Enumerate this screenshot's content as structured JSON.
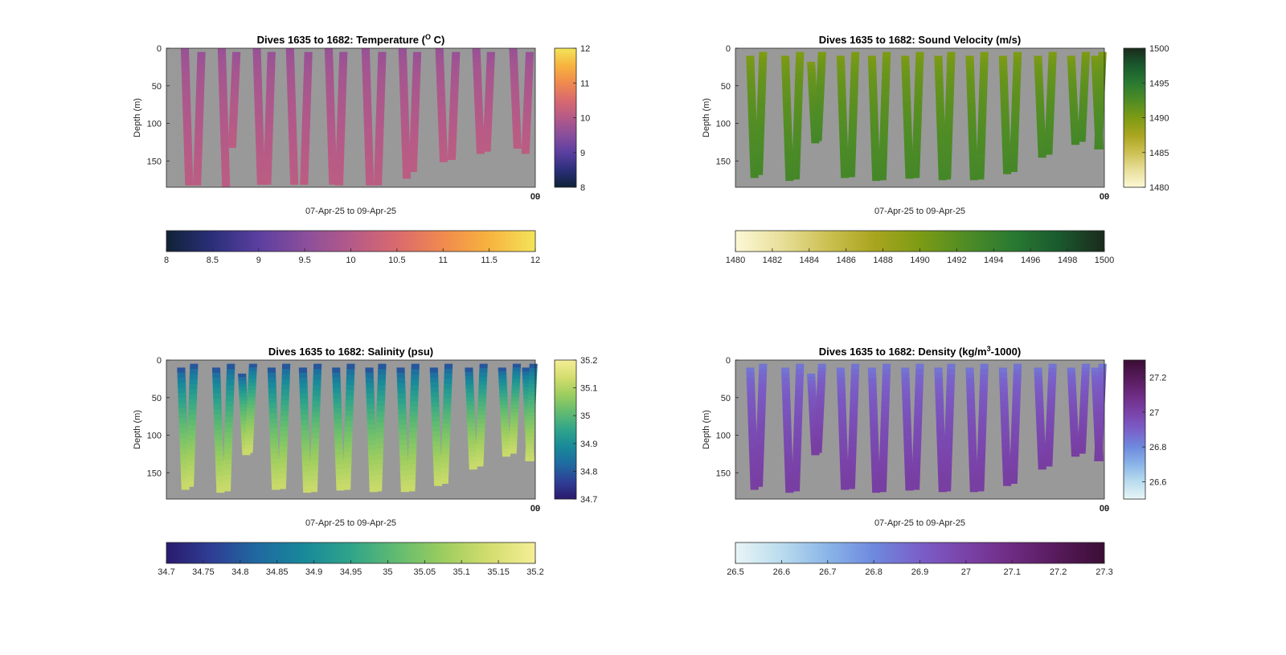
{
  "chart_data": [
    {
      "type": "heatmap",
      "title": "Dives 1635 to 1682: Temperature (",
      "title_sup": "O",
      "title_after": " C)",
      "xlabel": "07-Apr-25 to 09-Apr-25",
      "ylabel": "Depth (m)",
      "x_corner_labels": [
        "00",
        "09"
      ],
      "ylim": [
        0,
        185
      ],
      "yticks": [
        0,
        50,
        100,
        150
      ],
      "yreversed": true,
      "background_color": "#999999",
      "colormap": [
        "#0f2236",
        "#2b2f7a",
        "#5b3fa0",
        "#8a4e9c",
        "#b45a88",
        "#d96a6e",
        "#f08a4e",
        "#f7b33e",
        "#f3e45a"
      ],
      "clim": [
        8,
        12
      ],
      "right_colorbar_ticks": [
        "8",
        "9",
        "10",
        "11",
        "12"
      ],
      "bottom_colorbar_ticks": [
        "8",
        "8.5",
        "9",
        "9.5",
        "10",
        "10.5",
        "11",
        "11.5",
        "12"
      ],
      "profile_value_top": 9.6,
      "profile_value_bottom": 10.1,
      "profiles": [
        {
          "x": 0.05,
          "top": 0,
          "bottom": 182
        },
        {
          "x": 0.095,
          "top": 5,
          "bottom": 182
        },
        {
          "x": 0.15,
          "top": 0,
          "bottom": 184
        },
        {
          "x": 0.19,
          "top": 5,
          "bottom": 132
        },
        {
          "x": 0.245,
          "top": 0,
          "bottom": 181
        },
        {
          "x": 0.285,
          "top": 5,
          "bottom": 181
        },
        {
          "x": 0.335,
          "top": 0,
          "bottom": 181
        },
        {
          "x": 0.385,
          "top": 5,
          "bottom": 181
        },
        {
          "x": 0.44,
          "top": 0,
          "bottom": 181
        },
        {
          "x": 0.48,
          "top": 5,
          "bottom": 182
        },
        {
          "x": 0.54,
          "top": 0,
          "bottom": 182
        },
        {
          "x": 0.585,
          "top": 5,
          "bottom": 182
        },
        {
          "x": 0.64,
          "top": 0,
          "bottom": 173
        },
        {
          "x": 0.68,
          "top": 5,
          "bottom": 164
        },
        {
          "x": 0.74,
          "top": 0,
          "bottom": 151
        },
        {
          "x": 0.785,
          "top": 5,
          "bottom": 148
        },
        {
          "x": 0.84,
          "top": 0,
          "bottom": 140
        },
        {
          "x": 0.88,
          "top": 5,
          "bottom": 137
        },
        {
          "x": 0.94,
          "top": 0,
          "bottom": 133
        },
        {
          "x": 0.985,
          "top": 5,
          "bottom": 140
        }
      ]
    },
    {
      "type": "heatmap",
      "title": "Dives 1635 to 1682: Sound Velocity (m/s)",
      "xlabel": "07-Apr-25 to 09-Apr-25",
      "ylabel": "Depth (m)",
      "x_corner_labels": [
        "00",
        "09"
      ],
      "ylim": [
        0,
        185
      ],
      "yticks": [
        0,
        50,
        100,
        150
      ],
      "yreversed": true,
      "background_color": "#999999",
      "colormap": [
        "#fcf8d6",
        "#e8df9a",
        "#ccc052",
        "#a9a51f",
        "#7d9b14",
        "#4f8c25",
        "#2a7a32",
        "#1a5a2e",
        "#1a2a1c"
      ],
      "clim": [
        1480,
        1500
      ],
      "right_colorbar_ticks": [
        "1480",
        "1485",
        "1490",
        "1495",
        "1500"
      ],
      "bottom_colorbar_ticks": [
        "1480",
        "1482",
        "1484",
        "1486",
        "1488",
        "1490",
        "1492",
        "1494",
        "1496",
        "1498",
        "1500"
      ],
      "profile_value_top": 1489.5,
      "profile_value_bottom": 1493.2,
      "profiles": [
        {
          "x": 0.04,
          "top": 10,
          "bottom": 172
        },
        {
          "x": 0.075,
          "top": 5,
          "bottom": 168
        },
        {
          "x": 0.135,
          "top": 10,
          "bottom": 176
        },
        {
          "x": 0.175,
          "top": 5,
          "bottom": 174
        },
        {
          "x": 0.205,
          "top": 18,
          "bottom": 126
        },
        {
          "x": 0.235,
          "top": 5,
          "bottom": 123
        },
        {
          "x": 0.285,
          "top": 10,
          "bottom": 172
        },
        {
          "x": 0.325,
          "top": 5,
          "bottom": 171
        },
        {
          "x": 0.37,
          "top": 10,
          "bottom": 176
        },
        {
          "x": 0.41,
          "top": 5,
          "bottom": 175
        },
        {
          "x": 0.46,
          "top": 10,
          "bottom": 173
        },
        {
          "x": 0.5,
          "top": 5,
          "bottom": 172
        },
        {
          "x": 0.55,
          "top": 10,
          "bottom": 175
        },
        {
          "x": 0.585,
          "top": 5,
          "bottom": 174
        },
        {
          "x": 0.635,
          "top": 10,
          "bottom": 175
        },
        {
          "x": 0.675,
          "top": 5,
          "bottom": 174
        },
        {
          "x": 0.725,
          "top": 10,
          "bottom": 167
        },
        {
          "x": 0.765,
          "top": 5,
          "bottom": 164
        },
        {
          "x": 0.82,
          "top": 10,
          "bottom": 145
        },
        {
          "x": 0.86,
          "top": 5,
          "bottom": 141
        },
        {
          "x": 0.91,
          "top": 10,
          "bottom": 128
        },
        {
          "x": 0.95,
          "top": 5,
          "bottom": 124
        },
        {
          "x": 0.975,
          "top": 10,
          "bottom": 134
        },
        {
          "x": 0.995,
          "top": 5,
          "bottom": 134
        }
      ]
    },
    {
      "type": "heatmap",
      "title": "Dives 1635 to 1682: Salinity (psu)",
      "xlabel": "07-Apr-25 to 09-Apr-25",
      "ylabel": "Depth (m)",
      "x_corner_labels": [
        "00",
        "09"
      ],
      "ylim": [
        0,
        185
      ],
      "yticks": [
        0,
        50,
        100,
        150
      ],
      "yreversed": true,
      "background_color": "#999999",
      "colormap": [
        "#2a1a6e",
        "#2e3f95",
        "#1f6aa0",
        "#18899a",
        "#30a48a",
        "#62bb70",
        "#9ccd5f",
        "#d3dd6e",
        "#f5ee97"
      ],
      "clim": [
        34.7,
        35.2
      ],
      "right_colorbar_ticks": [
        "34.7",
        "34.8",
        "34.9",
        "35",
        "35.1",
        "35.2"
      ],
      "bottom_colorbar_ticks": [
        "34.7",
        "34.75",
        "34.8",
        "34.85",
        "34.9",
        "34.95",
        "35",
        "35.05",
        "35.1",
        "35.15",
        "35.2"
      ],
      "profile_value_top": 34.74,
      "profile_value_bottom": 35.13,
      "profiles": [
        {
          "x": 0.04,
          "top": 10,
          "bottom": 172
        },
        {
          "x": 0.075,
          "top": 5,
          "bottom": 168
        },
        {
          "x": 0.135,
          "top": 10,
          "bottom": 176
        },
        {
          "x": 0.175,
          "top": 5,
          "bottom": 174
        },
        {
          "x": 0.205,
          "top": 18,
          "bottom": 126
        },
        {
          "x": 0.235,
          "top": 5,
          "bottom": 123
        },
        {
          "x": 0.285,
          "top": 10,
          "bottom": 172
        },
        {
          "x": 0.325,
          "top": 5,
          "bottom": 171
        },
        {
          "x": 0.37,
          "top": 10,
          "bottom": 176
        },
        {
          "x": 0.41,
          "top": 5,
          "bottom": 175
        },
        {
          "x": 0.46,
          "top": 10,
          "bottom": 173
        },
        {
          "x": 0.5,
          "top": 5,
          "bottom": 172
        },
        {
          "x": 0.55,
          "top": 10,
          "bottom": 175
        },
        {
          "x": 0.585,
          "top": 5,
          "bottom": 174
        },
        {
          "x": 0.635,
          "top": 10,
          "bottom": 175
        },
        {
          "x": 0.675,
          "top": 5,
          "bottom": 174
        },
        {
          "x": 0.725,
          "top": 10,
          "bottom": 167
        },
        {
          "x": 0.765,
          "top": 5,
          "bottom": 164
        },
        {
          "x": 0.82,
          "top": 10,
          "bottom": 145
        },
        {
          "x": 0.86,
          "top": 5,
          "bottom": 141
        },
        {
          "x": 0.91,
          "top": 10,
          "bottom": 128
        },
        {
          "x": 0.95,
          "top": 5,
          "bottom": 124
        },
        {
          "x": 0.975,
          "top": 10,
          "bottom": 134
        },
        {
          "x": 0.995,
          "top": 5,
          "bottom": 134
        }
      ]
    },
    {
      "type": "heatmap",
      "title": "Dives 1635 to 1682: Density (kg/m",
      "title_sup": "3",
      "title_after": "-1000)",
      "xlabel": "07-Apr-25 to 09-Apr-25",
      "ylabel": "Depth (m)",
      "x_corner_labels": [
        "00",
        "09"
      ],
      "ylim": [
        0,
        185
      ],
      "yticks": [
        0,
        50,
        100,
        150
      ],
      "yreversed": true,
      "background_color": "#999999",
      "colormap": [
        "#e9f5f6",
        "#b9dcee",
        "#8ab5e8",
        "#6e89de",
        "#7a5fc8",
        "#7a42a8",
        "#6e2b82",
        "#561a5a",
        "#3a0e34"
      ],
      "clim": [
        26.5,
        27.3
      ],
      "right_colorbar_ticks": [
        "26.6",
        "26.8",
        "27",
        "27.2"
      ],
      "bottom_colorbar_ticks": [
        "26.5",
        "26.6",
        "26.7",
        "26.8",
        "26.9",
        "27",
        "27.1",
        "27.2",
        "27.3"
      ],
      "profile_value_top": 26.82,
      "profile_value_bottom": 27.02,
      "profiles": [
        {
          "x": 0.04,
          "top": 10,
          "bottom": 172
        },
        {
          "x": 0.075,
          "top": 5,
          "bottom": 168
        },
        {
          "x": 0.135,
          "top": 10,
          "bottom": 176
        },
        {
          "x": 0.175,
          "top": 5,
          "bottom": 174
        },
        {
          "x": 0.205,
          "top": 18,
          "bottom": 126
        },
        {
          "x": 0.235,
          "top": 5,
          "bottom": 123
        },
        {
          "x": 0.285,
          "top": 10,
          "bottom": 172
        },
        {
          "x": 0.325,
          "top": 5,
          "bottom": 171
        },
        {
          "x": 0.37,
          "top": 10,
          "bottom": 176
        },
        {
          "x": 0.41,
          "top": 5,
          "bottom": 175
        },
        {
          "x": 0.46,
          "top": 10,
          "bottom": 173
        },
        {
          "x": 0.5,
          "top": 5,
          "bottom": 172
        },
        {
          "x": 0.55,
          "top": 10,
          "bottom": 175
        },
        {
          "x": 0.585,
          "top": 5,
          "bottom": 174
        },
        {
          "x": 0.635,
          "top": 10,
          "bottom": 175
        },
        {
          "x": 0.675,
          "top": 5,
          "bottom": 174
        },
        {
          "x": 0.725,
          "top": 10,
          "bottom": 167
        },
        {
          "x": 0.765,
          "top": 5,
          "bottom": 164
        },
        {
          "x": 0.82,
          "top": 10,
          "bottom": 145
        },
        {
          "x": 0.86,
          "top": 5,
          "bottom": 141
        },
        {
          "x": 0.91,
          "top": 10,
          "bottom": 128
        },
        {
          "x": 0.95,
          "top": 5,
          "bottom": 124
        },
        {
          "x": 0.975,
          "top": 10,
          "bottom": 134
        },
        {
          "x": 0.995,
          "top": 5,
          "bottom": 134
        }
      ]
    }
  ]
}
